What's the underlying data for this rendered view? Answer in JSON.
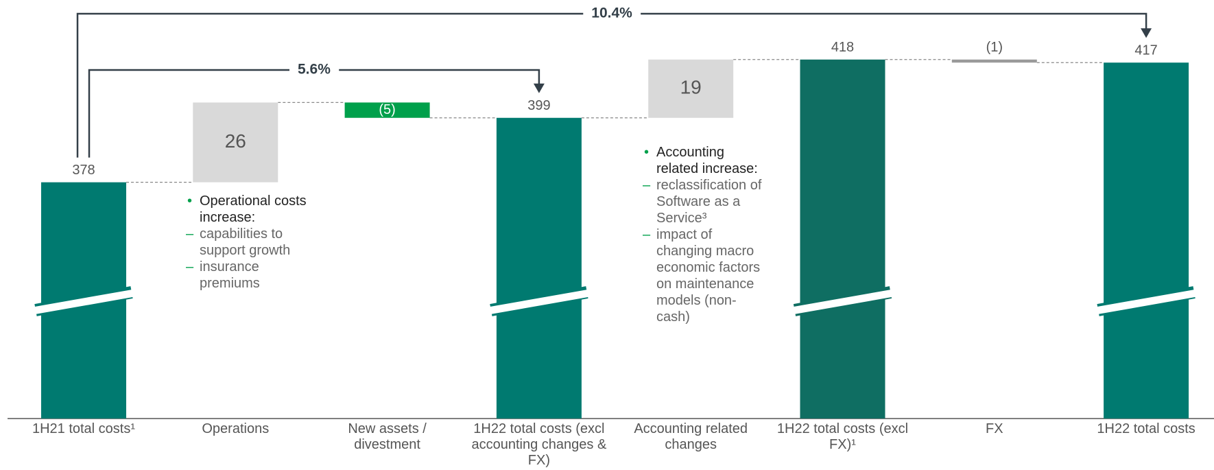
{
  "chart_data": {
    "type": "waterfall",
    "categories": [
      "1H21 total costs¹",
      "Operations",
      "New assets / divestment",
      "1H22 total costs (excl accounting changes & FX)",
      "Accounting related changes",
      "1H22 total costs (excl FX)¹",
      "FX",
      "1H22 total costs"
    ],
    "values": [
      378,
      26,
      -5,
      399,
      19,
      418,
      -1,
      417
    ],
    "value_labels": [
      "378",
      "26",
      "(5)",
      "399",
      "19",
      "418",
      "(1)",
      "417"
    ],
    "kinds": [
      "total",
      "delta",
      "delta",
      "total",
      "delta",
      "total",
      "delta",
      "total"
    ],
    "colors": [
      "#007a70",
      "#d9d9d9",
      "#00a04b",
      "#007a70",
      "#d9d9d9",
      "#0f6e62",
      "#9a9a9a",
      "#007a70"
    ],
    "ylim": [
      301,
      426
    ],
    "axis_break": true,
    "annotations": [
      {
        "text": "10.4%",
        "from": 0,
        "to": 7
      },
      {
        "text": "5.6%",
        "from": 0,
        "to": 3
      }
    ],
    "notes": [
      {
        "category": 1,
        "heading": "Operational costs increase:",
        "items": [
          "capabilities to support growth",
          "insurance premiums"
        ]
      },
      {
        "category": 4,
        "heading": "Accounting related increase:",
        "items": [
          "reclassification of Software as a Service³",
          "impact of changing macro economic factors on maintenance models (non-cash)"
        ]
      }
    ]
  }
}
